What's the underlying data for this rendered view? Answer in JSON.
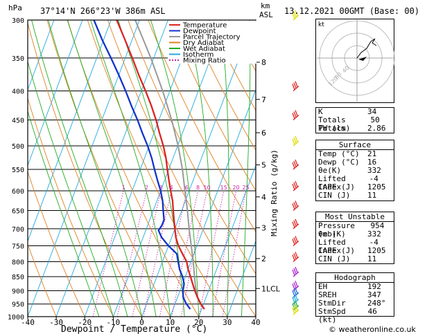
{
  "header": {
    "p_unit": "hPa",
    "location": "37°14'N  266°23'W  386m  ASL",
    "km_unit": "km",
    "asl_unit": "ASL",
    "datetime": "13.12.2021  00GMT  (Base: 00)"
  },
  "chart_data": {
    "type": "line",
    "title": "",
    "xlabel": "Dewpoint / Temperature (°C)",
    "ylabel": "hPa",
    "mixing_ratio_axis_label": "Mixing Ratio (g/kg)",
    "x_ticks": [
      "-40",
      "-30",
      "-20",
      "-10",
      "0",
      "10",
      "20",
      "30",
      "40"
    ],
    "y_ticks": [
      "300",
      "350",
      "400",
      "450",
      "500",
      "550",
      "600",
      "650",
      "700",
      "750",
      "800",
      "850",
      "900",
      "950",
      "1000"
    ],
    "km_ticks": [
      {
        "label": "8",
        "p": 356
      },
      {
        "label": "7",
        "p": 414
      },
      {
        "label": "6",
        "p": 474
      },
      {
        "label": "5",
        "p": 540
      },
      {
        "label": "4",
        "p": 615
      },
      {
        "label": "3",
        "p": 697
      },
      {
        "label": "2",
        "p": 790
      },
      {
        "label": "1LCL",
        "p": 892
      }
    ],
    "mixing_ratio_labels": [
      "1",
      "2",
      "3",
      "4",
      "6",
      "8",
      "10",
      "15",
      "20",
      "25"
    ],
    "xlim": [
      -40,
      40
    ],
    "ylim": [
      1000,
      300
    ],
    "y_scale": "log",
    "skew_deg_per_decade": 75,
    "series": [
      {
        "name": "Temperature",
        "color": "#dd2222",
        "p": [
          970,
          950,
          925,
          900,
          875,
          850,
          825,
          800,
          775,
          750,
          725,
          700,
          675,
          650,
          625,
          600,
          575,
          550,
          525,
          500,
          475,
          450,
          425,
          400,
          375,
          350,
          325,
          300
        ],
        "t": [
          21.0,
          19.0,
          17.0,
          15.2,
          13.5,
          11.8,
          10.0,
          8.5,
          6.0,
          3.5,
          1.5,
          0.0,
          -1.5,
          -3.0,
          -4.5,
          -6.5,
          -8.5,
          -10.5,
          -12.5,
          -15.0,
          -18.0,
          -21.0,
          -24.5,
          -28.5,
          -33.0,
          -37.5,
          -42.5,
          -48.0
        ]
      },
      {
        "name": "Dewpoint",
        "color": "#1133cc",
        "p": [
          970,
          950,
          925,
          900,
          875,
          850,
          825,
          800,
          775,
          750,
          725,
          705,
          690,
          675,
          650,
          625,
          600,
          575,
          550,
          525,
          500,
          475,
          450,
          425,
          400,
          375,
          350,
          325,
          300
        ],
        "t": [
          16.0,
          14.0,
          12.0,
          11.0,
          10.5,
          9.0,
          7.0,
          5.5,
          4.0,
          0.0,
          -3.5,
          -5.5,
          -5.0,
          -5.0,
          -6.5,
          -8.0,
          -10.0,
          -12.5,
          -15.0,
          -17.5,
          -20.5,
          -24.0,
          -27.5,
          -31.5,
          -35.5,
          -40.0,
          -45.0,
          -50.5,
          -56.0
        ]
      },
      {
        "name": "Parcel Trajectory",
        "color": "#999999",
        "p": [
          970,
          950,
          925,
          900,
          892,
          850,
          800,
          750,
          700,
          650,
          600,
          550,
          500,
          450,
          400,
          350,
          300
        ],
        "t": [
          21.0,
          19.2,
          17.1,
          15.8,
          15.2,
          13.2,
          10.8,
          8.0,
          5.0,
          2.0,
          -1.5,
          -5.2,
          -9.8,
          -15.5,
          -22.5,
          -31.0,
          -41.5
        ]
      }
    ],
    "legend": {
      "placement": "top-right",
      "entries": [
        {
          "label": "Temperature",
          "color": "#dd2222"
        },
        {
          "label": "Dewpoint",
          "color": "#1133cc"
        },
        {
          "label": "Parcel Trajectory",
          "color": "#999999"
        },
        {
          "label": "Dry Adiabat",
          "color": "#e08020"
        },
        {
          "label": "Wet Adiabat",
          "color": "#22aa22"
        },
        {
          "label": "Isotherm",
          "color": "#22aadd"
        },
        {
          "label": "Mixing Ratio",
          "color": "#cc22aa"
        }
      ]
    },
    "wind_barbs": [
      {
        "p": 300,
        "color": "#dddd00"
      },
      {
        "p": 400,
        "color": "#dd2222"
      },
      {
        "p": 450,
        "color": "#dd2222"
      },
      {
        "p": 500,
        "color": "#dddd00"
      },
      {
        "p": 550,
        "color": "#dd2222"
      },
      {
        "p": 600,
        "color": "#dd2222"
      },
      {
        "p": 650,
        "color": "#dd2222"
      },
      {
        "p": 700,
        "color": "#dd2222"
      },
      {
        "p": 750,
        "color": "#dd2222"
      },
      {
        "p": 800,
        "color": "#dd2222"
      },
      {
        "p": 850,
        "color": "#aa22cc"
      },
      {
        "p": 900,
        "color": "#aa22cc"
      },
      {
        "p": 925,
        "color": "#2266dd"
      },
      {
        "p": 950,
        "color": "#22aadd"
      },
      {
        "p": 975,
        "color": "#22aa44"
      },
      {
        "p": 1000,
        "color": "#dddd00"
      }
    ]
  },
  "hodograph": {
    "unit": "kt",
    "ring_labels": [
      "120",
      "80",
      "40"
    ]
  },
  "indices": {
    "rows": [
      {
        "label": "K",
        "value": "34"
      },
      {
        "label": "Totals Totals",
        "value": "50"
      },
      {
        "label": "PW (cm)",
        "value": "2.86"
      }
    ]
  },
  "surface": {
    "title": "Surface",
    "rows": [
      {
        "label": "Temp (°C)",
        "value": "21"
      },
      {
        "label": "Dewp (°C)",
        "value": "16"
      },
      {
        "label": "θe(K)",
        "value": "332"
      },
      {
        "label": "Lifted Index",
        "value": "-4"
      },
      {
        "label": "CAPE (J)",
        "value": "1205"
      },
      {
        "label": "CIN (J)",
        "value": "11"
      }
    ]
  },
  "unstable": {
    "title": "Most Unstable",
    "rows": [
      {
        "label": "Pressure (mb)",
        "value": "954"
      },
      {
        "label": "θe (K)",
        "value": "332"
      },
      {
        "label": "Lifted Index",
        "value": "-4"
      },
      {
        "label": "CAPE (J)",
        "value": "1205"
      },
      {
        "label": "CIN (J)",
        "value": "11"
      }
    ]
  },
  "hodo_table": {
    "title": "Hodograph",
    "rows": [
      {
        "label": "EH",
        "value": "192"
      },
      {
        "label": "SREH",
        "value": "347"
      },
      {
        "label": "StmDir",
        "value": "248°"
      },
      {
        "label": "StmSpd (kt)",
        "value": "46"
      }
    ]
  },
  "footer": {
    "icon": "copyright-icon",
    "text": "weatheronline.co.uk"
  }
}
